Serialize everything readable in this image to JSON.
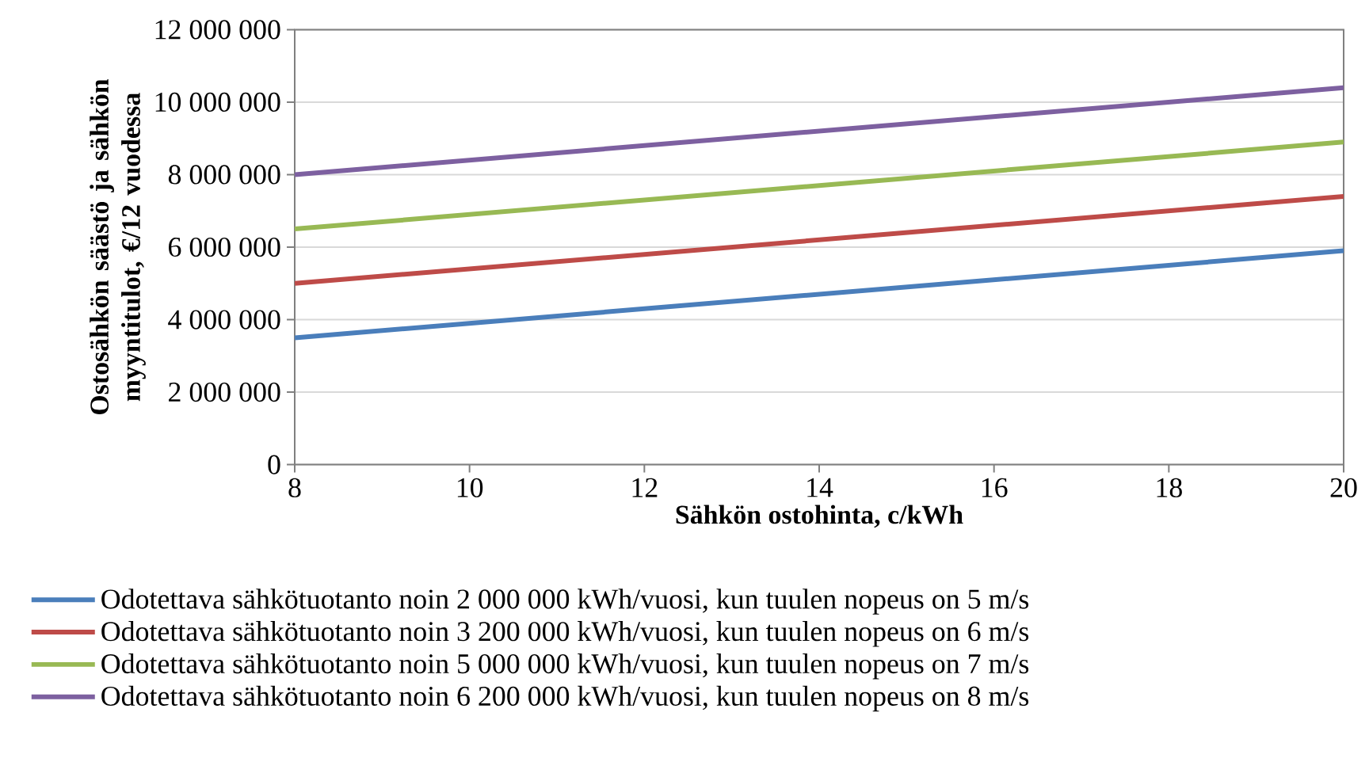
{
  "chart_data": {
    "type": "line",
    "xlabel": "Sähkön ostohinta, c/kWh",
    "ylabel": "Ostosähkön säästö ja sähkön myyntitulot, €/12 vuodessa",
    "x": [
      8,
      20
    ],
    "series": [
      {
        "name": "Odotettava sähkötuotanto noin 2 000 000 kWh/vuosi, kun tuulen nopeus on 5 m/s",
        "color": "#4a7ebb",
        "values": [
          3500000,
          5900000
        ]
      },
      {
        "name": "Odotettava sähkötuotanto noin 3 200 000 kWh/vuosi, kun tuulen nopeus on 6 m/s",
        "color": "#be4b48",
        "values": [
          5000000,
          7400000
        ]
      },
      {
        "name": "Odotettava sähkötuotanto noin 5 000 000 kWh/vuosi, kun tuulen nopeus on 7 m/s",
        "color": "#98b954",
        "values": [
          6500000,
          8900000
        ]
      },
      {
        "name": "Odotettava sähkötuotanto noin 6 200 000 kWh/vuosi, kun tuulen nopeus on 8 m/s",
        "color": "#7d60a0",
        "values": [
          8000000,
          10400000
        ]
      }
    ],
    "xlim": [
      8,
      20
    ],
    "ylim": [
      0,
      12000000
    ],
    "xticks": [
      8,
      10,
      12,
      14,
      16,
      18,
      20
    ],
    "yticks": [
      0,
      {
        "value": 2000000,
        "label": "2 000 000"
      },
      {
        "value": 4000000,
        "label": "4 000 000"
      },
      {
        "value": 6000000,
        "label": "6 000 000"
      },
      {
        "value": 8000000,
        "label": "8 000 000"
      },
      {
        "value": 10000000,
        "label": "10 000 000"
      },
      {
        "value": 12000000,
        "label": "12 000 000"
      }
    ],
    "grid": "y",
    "legend": "bottom"
  }
}
